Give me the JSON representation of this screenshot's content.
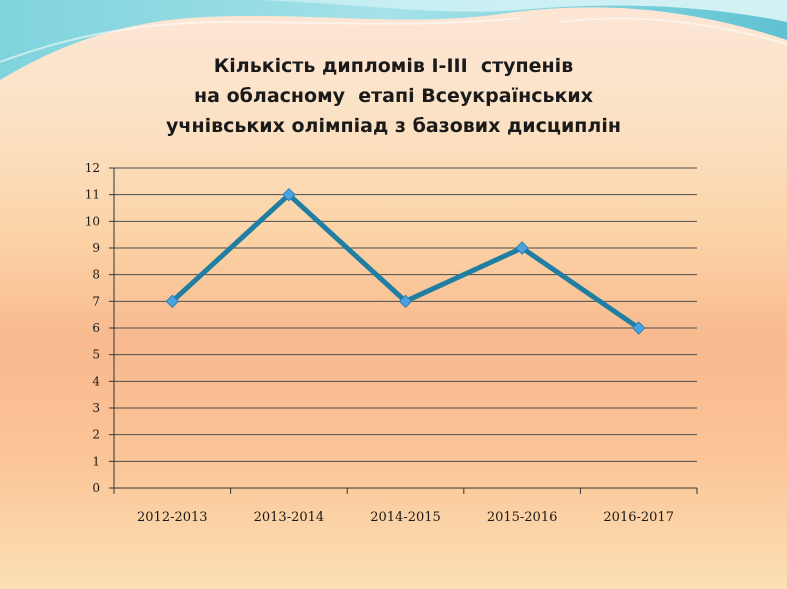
{
  "chart_data": {
    "type": "line",
    "title_lines": [
      "Кількість дипломів І-ІІІ  ступенів",
      "на обласному  етапі Всеукраїнських",
      "учнівських олімпіад з базових дисциплін"
    ],
    "categories": [
      "2012-2013",
      "2013-2014",
      "2014-2015",
      "2015-2016",
      "2016-2017"
    ],
    "values": [
      7,
      11,
      7,
      9,
      6
    ],
    "y_ticks": [
      0,
      1,
      2,
      3,
      4,
      5,
      6,
      7,
      8,
      9,
      10,
      11,
      12
    ],
    "ylim": [
      0,
      12
    ],
    "grid": true,
    "line_color": "#1f7ea1",
    "marker_color": "#4aa3df"
  }
}
